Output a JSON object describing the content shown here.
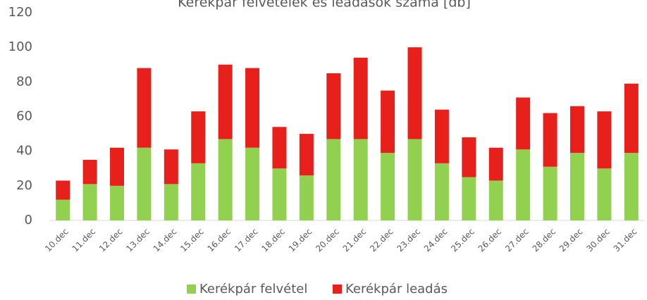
{
  "chart_data": {
    "type": "stacked_bar",
    "title": "Kerékpár felvételek és leadások száma [db]",
    "categories": [
      "10.dec",
      "11.dec",
      "12.dec",
      "13.dec",
      "14.dec",
      "15.dec",
      "16.dec",
      "17.dec",
      "18.dec",
      "19.dec",
      "20.dec",
      "21.dec",
      "22.dec",
      "23.dec",
      "24.dec",
      "25.dec",
      "26.dec",
      "27.dec",
      "28.dec",
      "29.dec",
      "30.dec",
      "31.dec"
    ],
    "series": [
      {
        "name": "Kerékpár felvétel",
        "color": "#92d050",
        "values": [
          12,
          21,
          20,
          42,
          21,
          33,
          47,
          42,
          30,
          26,
          47,
          47,
          39,
          47,
          33,
          25,
          23,
          41,
          31,
          39,
          30,
          39
        ]
      },
      {
        "name": "Kerékpár leadás",
        "color": "#e8201c",
        "values": [
          11,
          14,
          22,
          46,
          20,
          30,
          43,
          46,
          24,
          24,
          38,
          47,
          36,
          53,
          31,
          23,
          19,
          30,
          31,
          27,
          33,
          40
        ]
      }
    ],
    "ylim": [
      0,
      120
    ],
    "yticks": [
      0,
      20,
      40,
      60,
      80,
      100,
      120
    ],
    "legend": "bottom"
  }
}
